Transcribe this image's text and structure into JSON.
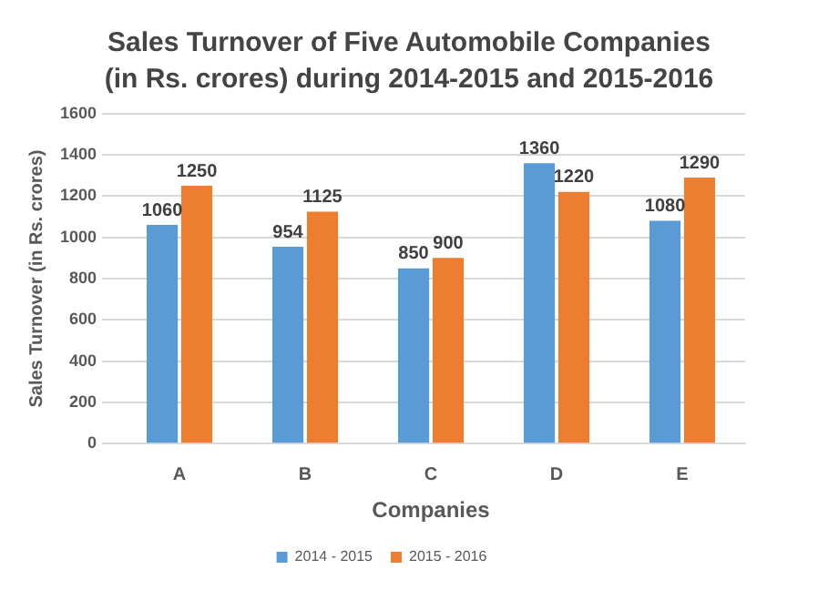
{
  "chart_data": {
    "type": "bar",
    "title": "Sales Turnover of Five Automobile Companies (in Rs. crores) during 2014-2015 and 2015-2016",
    "xlabel": "Companies",
    "ylabel": "Sales Turnover (in Rs. crores)",
    "categories": [
      "A",
      "B",
      "C",
      "D",
      "E"
    ],
    "series": [
      {
        "name": "2014 - 2015",
        "color": "#5b9bd5",
        "values": [
          1060,
          954,
          850,
          1360,
          1080
        ]
      },
      {
        "name": "2015 - 2016",
        "color": "#ed7d31",
        "values": [
          1250,
          1125,
          900,
          1220,
          1290
        ]
      }
    ],
    "ylim": [
      0,
      1600
    ],
    "yticks": [
      0,
      200,
      400,
      600,
      800,
      1000,
      1200,
      1400,
      1600
    ],
    "grid": "y",
    "legend": "bottom",
    "data_labels": true
  }
}
